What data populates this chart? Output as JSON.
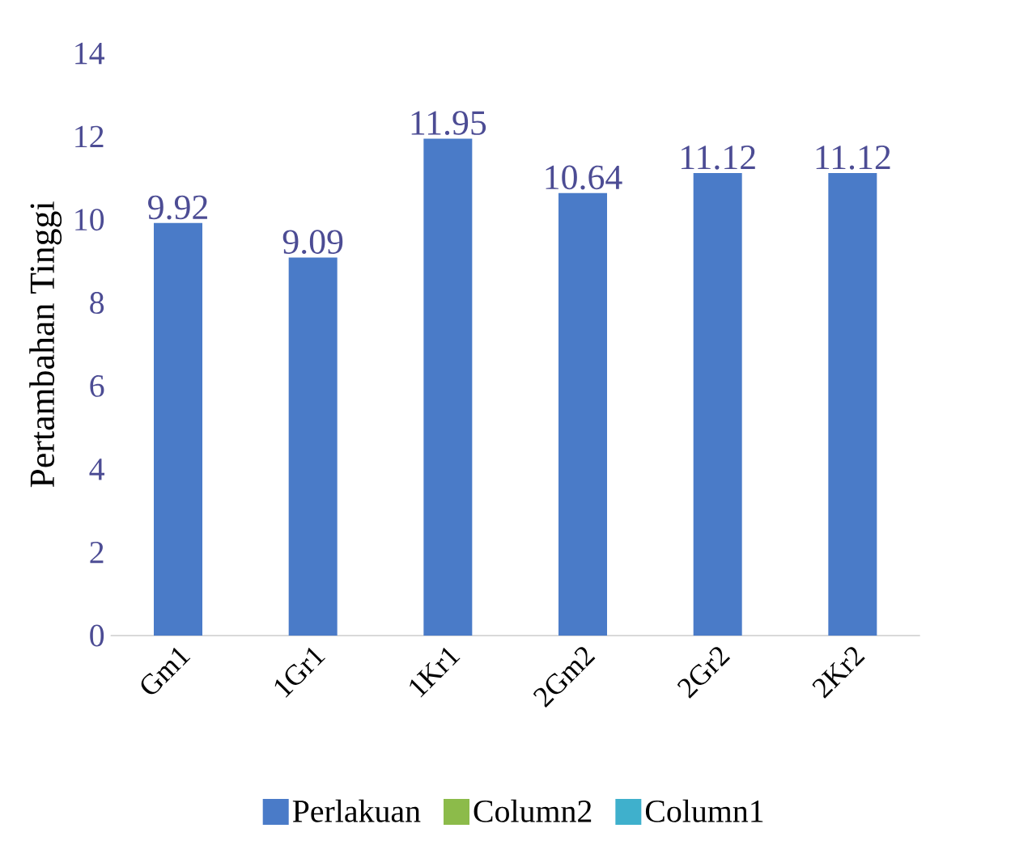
{
  "chart_data": {
    "type": "bar",
    "ylabel": "Pertambahan Tinggi",
    "categories": [
      "Gm1",
      "1Gr1",
      "1Kr1",
      "2Gm2",
      "2Gr2",
      "2Kr2"
    ],
    "series": [
      {
        "name": "Perlakuan",
        "color": "#4a7bc8",
        "values": [
          9.92,
          9.09,
          11.95,
          10.64,
          11.12,
          11.12
        ]
      },
      {
        "name": "Column2",
        "color": "#8cbb4a",
        "values": [
          null,
          null,
          null,
          null,
          null,
          null
        ]
      },
      {
        "name": "Column1",
        "color": "#3fb0cc",
        "values": [
          null,
          null,
          null,
          null,
          null,
          null
        ]
      }
    ],
    "ylim": [
      0,
      14
    ],
    "yticks": [
      0,
      2,
      4,
      6,
      8,
      10,
      12,
      14
    ],
    "data_labels": true,
    "legend": "bottom",
    "grid": false
  }
}
